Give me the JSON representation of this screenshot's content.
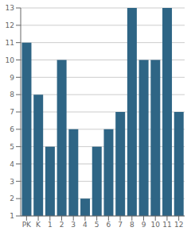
{
  "chart_data": {
    "type": "bar",
    "categories": [
      "PK",
      "K",
      "1",
      "2",
      "3",
      "4",
      "5",
      "6",
      "7",
      "8",
      "9",
      "10",
      "11",
      "12"
    ],
    "values": [
      11,
      8,
      5,
      10,
      6,
      2,
      5,
      6,
      7,
      13,
      10,
      10,
      13,
      7
    ],
    "color": "#2e6585",
    "ylim": [
      1,
      13
    ],
    "yticks": [
      1,
      2,
      3,
      4,
      5,
      6,
      7,
      8,
      9,
      10,
      11,
      12,
      13
    ],
    "grid": true
  }
}
